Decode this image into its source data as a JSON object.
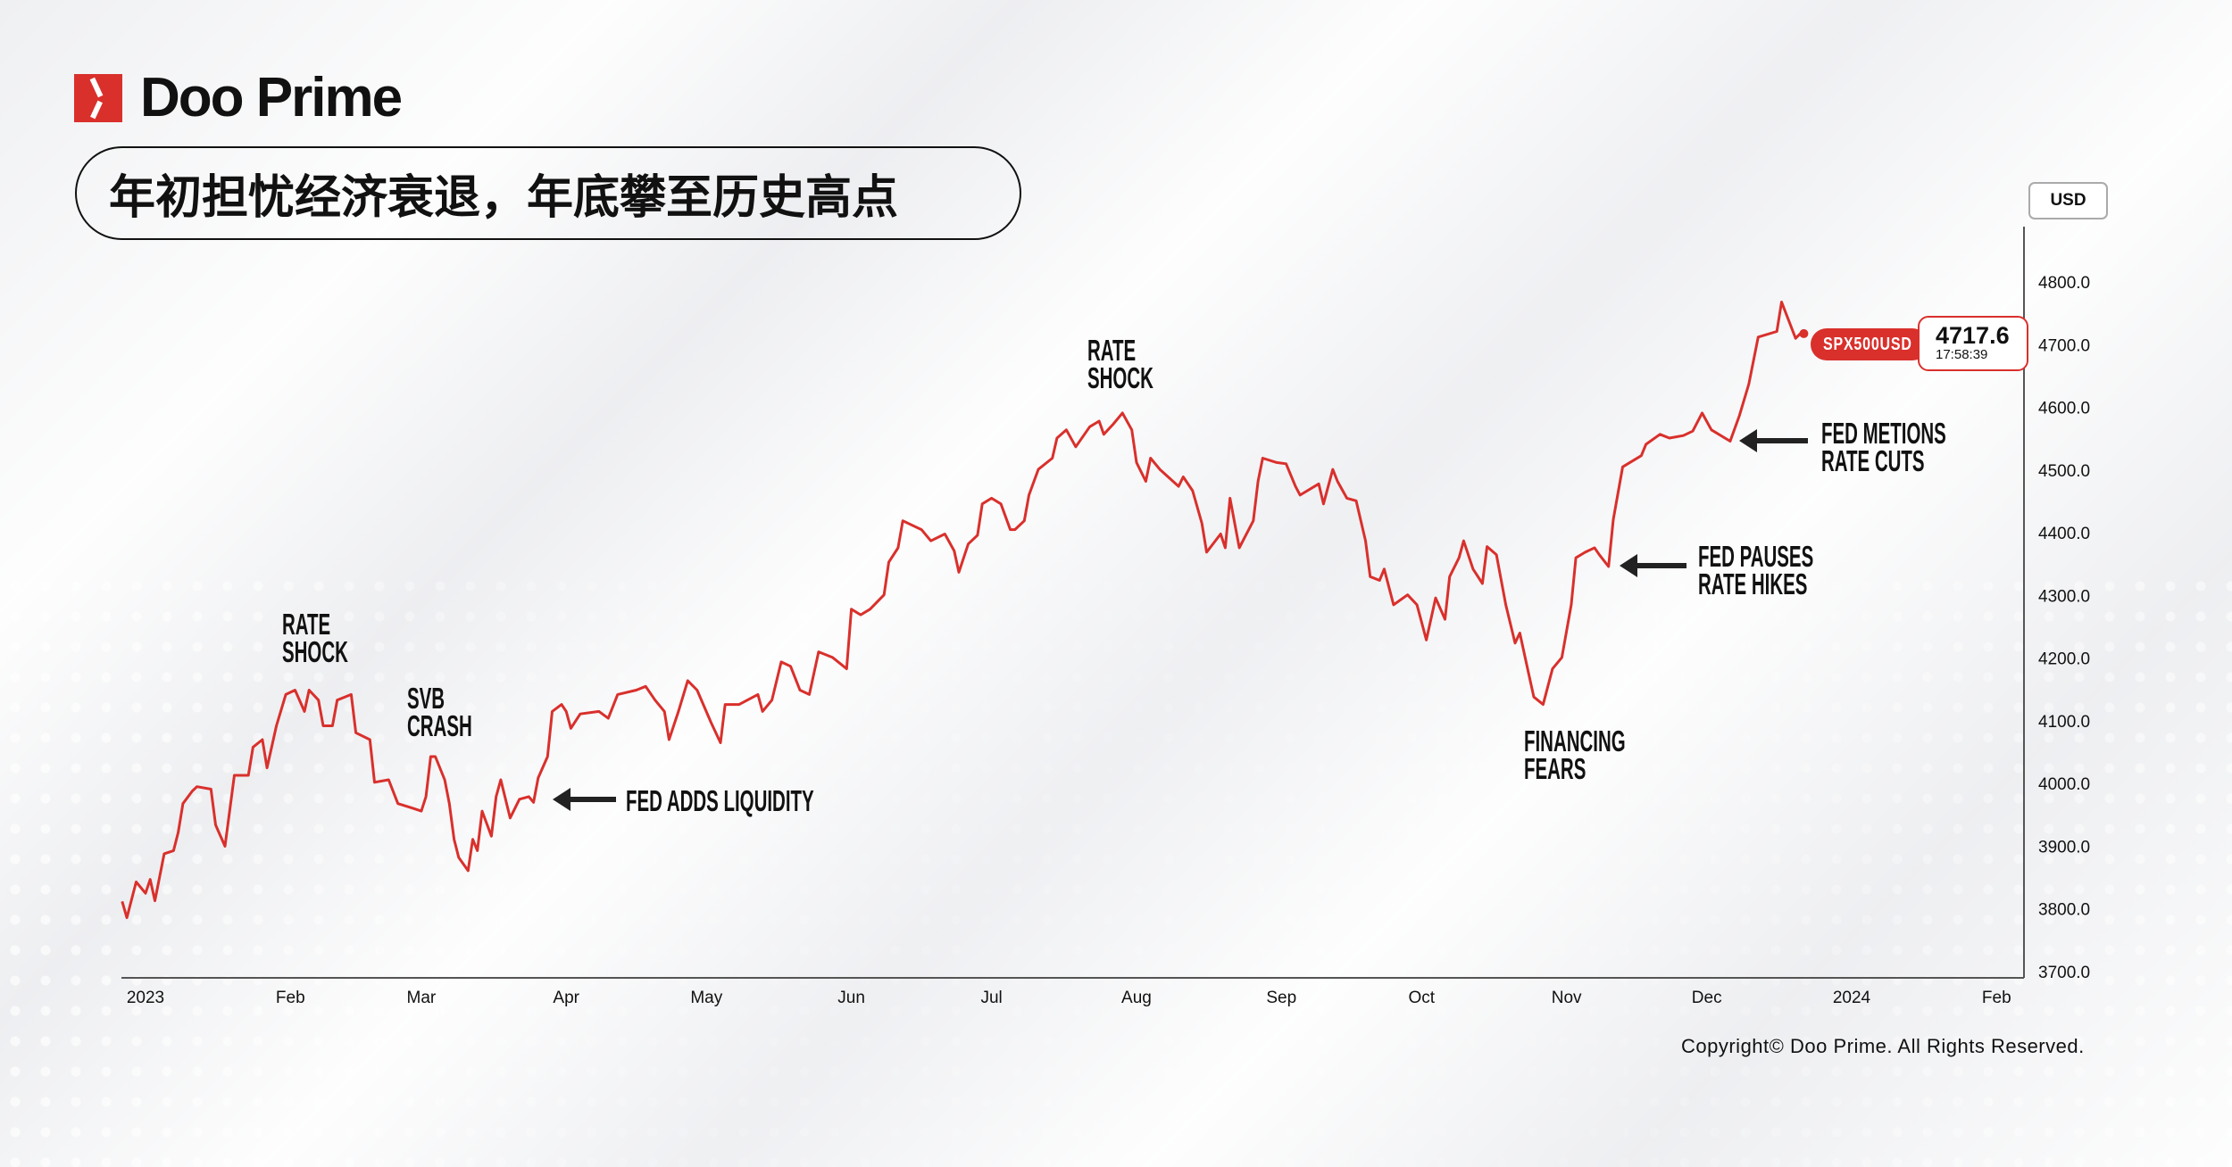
{
  "brand": {
    "name": "Doo Prime",
    "accent": "#d9302c"
  },
  "title": "年初担忧经济衰退，年底攀至历史高点",
  "currency_button": "USD",
  "price_tag": {
    "symbol": "SPX500USD",
    "price": "4717.6",
    "time": "17:58:39"
  },
  "annotations": [
    {
      "lines": [
        "RATE",
        "SHOCK"
      ],
      "date": "2023-02-02"
    },
    {
      "lines": [
        "SVB",
        "CRASH"
      ],
      "date": "2023-03-09"
    },
    {
      "lines": [
        "FED ADDS LIQUIDITY"
      ],
      "date": "2023-03-27",
      "arrow": true
    },
    {
      "lines": [
        "RATE",
        "SHOCK"
      ],
      "date": "2023-07-29"
    },
    {
      "lines": [
        "FINANCING",
        "FEARS"
      ],
      "date": "2023-10-27"
    },
    {
      "lines": [
        "FED PAUSES",
        "RATE HIKES"
      ],
      "date": "2023-11-10",
      "arrow": true
    },
    {
      "lines": [
        "FED METIONS",
        "RATE CUTS"
      ],
      "date": "2023-12-05",
      "arrow": true
    }
  ],
  "copyright": "Copyright© Doo Prime. All Rights Reserved.",
  "chart_data": {
    "type": "line",
    "series": [
      {
        "color": "#d9302c",
        "points": [
          [
            "2022-12-27",
            3812
          ],
          [
            "2022-12-28",
            3786
          ],
          [
            "2022-12-30",
            3843
          ],
          [
            "2023-01-01",
            3825
          ],
          [
            "2023-01-02",
            3847
          ],
          [
            "2023-01-03",
            3813
          ],
          [
            "2023-01-05",
            3888
          ],
          [
            "2023-01-07",
            3893
          ],
          [
            "2023-01-08",
            3922
          ],
          [
            "2023-01-09",
            3968
          ],
          [
            "2023-01-11",
            3988
          ],
          [
            "2023-01-12",
            3995
          ],
          [
            "2023-01-15",
            3991
          ],
          [
            "2023-01-16",
            3934
          ],
          [
            "2023-01-18",
            3900
          ],
          [
            "2023-01-20",
            4013
          ],
          [
            "2023-01-23",
            4013
          ],
          [
            "2023-01-24",
            4058
          ],
          [
            "2023-01-26",
            4070
          ],
          [
            "2023-01-27",
            4025
          ],
          [
            "2023-01-29",
            4092
          ],
          [
            "2023-01-31",
            4142
          ],
          [
            "2023-02-02",
            4149
          ],
          [
            "2023-02-04",
            4115
          ],
          [
            "2023-02-05",
            4149
          ],
          [
            "2023-02-07",
            4133
          ],
          [
            "2023-02-08",
            4092
          ],
          [
            "2023-02-10",
            4092
          ],
          [
            "2023-02-11",
            4133
          ],
          [
            "2023-02-14",
            4142
          ],
          [
            "2023-02-15",
            4081
          ],
          [
            "2023-02-18",
            4070
          ],
          [
            "2023-02-19",
            4002
          ],
          [
            "2023-02-22",
            4006
          ],
          [
            "2023-02-24",
            3968
          ],
          [
            "2023-02-27",
            3961
          ],
          [
            "2023-03-01",
            3956
          ],
          [
            "2023-03-02",
            3979
          ],
          [
            "2023-03-03",
            4043
          ],
          [
            "2023-03-04",
            4043
          ],
          [
            "2023-03-06",
            4006
          ],
          [
            "2023-03-07",
            3968
          ],
          [
            "2023-03-08",
            3911
          ],
          [
            "2023-03-09",
            3882
          ],
          [
            "2023-03-11",
            3861
          ],
          [
            "2023-03-12",
            3911
          ],
          [
            "2023-03-13",
            3893
          ],
          [
            "2023-03-14",
            3956
          ],
          [
            "2023-03-16",
            3916
          ],
          [
            "2023-03-17",
            3979
          ],
          [
            "2023-03-18",
            4006
          ],
          [
            "2023-03-20",
            3945
          ],
          [
            "2023-03-22",
            3975
          ],
          [
            "2023-03-24",
            3979
          ],
          [
            "2023-03-25",
            3970
          ],
          [
            "2023-03-26",
            4009
          ],
          [
            "2023-03-28",
            4043
          ],
          [
            "2023-03-29",
            4115
          ],
          [
            "2023-03-31",
            4126
          ],
          [
            "2023-04-01",
            4115
          ],
          [
            "2023-04-02",
            4088
          ],
          [
            "2023-04-04",
            4111
          ],
          [
            "2023-04-08",
            4115
          ],
          [
            "2023-04-10",
            4104
          ],
          [
            "2023-04-12",
            4142
          ],
          [
            "2023-04-16",
            4149
          ],
          [
            "2023-04-18",
            4155
          ],
          [
            "2023-04-20",
            4133
          ],
          [
            "2023-04-22",
            4115
          ],
          [
            "2023-04-23",
            4070
          ],
          [
            "2023-04-25",
            4115
          ],
          [
            "2023-04-27",
            4164
          ],
          [
            "2023-04-29",
            4149
          ],
          [
            "2023-05-02",
            4097
          ],
          [
            "2023-05-04",
            4065
          ],
          [
            "2023-05-05",
            4126
          ],
          [
            "2023-05-08",
            4126
          ],
          [
            "2023-05-12",
            4142
          ],
          [
            "2023-05-13",
            4115
          ],
          [
            "2023-05-15",
            4133
          ],
          [
            "2023-05-17",
            4194
          ],
          [
            "2023-05-19",
            4187
          ],
          [
            "2023-05-21",
            4149
          ],
          [
            "2023-05-23",
            4142
          ],
          [
            "2023-05-25",
            4210
          ],
          [
            "2023-05-28",
            4201
          ],
          [
            "2023-05-31",
            4183
          ],
          [
            "2023-06-01",
            4278
          ],
          [
            "2023-06-03",
            4269
          ],
          [
            "2023-06-05",
            4278
          ],
          [
            "2023-06-08",
            4301
          ],
          [
            "2023-06-09",
            4353
          ],
          [
            "2023-06-11",
            4376
          ],
          [
            "2023-06-12",
            4419
          ],
          [
            "2023-06-16",
            4405
          ],
          [
            "2023-06-18",
            4387
          ],
          [
            "2023-06-21",
            4398
          ],
          [
            "2023-06-23",
            4371
          ],
          [
            "2023-06-24",
            4337
          ],
          [
            "2023-06-26",
            4382
          ],
          [
            "2023-06-28",
            4396
          ],
          [
            "2023-06-29",
            4446
          ],
          [
            "2023-07-01",
            4455
          ],
          [
            "2023-07-03",
            4446
          ],
          [
            "2023-07-05",
            4405
          ],
          [
            "2023-07-06",
            4405
          ],
          [
            "2023-07-08",
            4419
          ],
          [
            "2023-07-09",
            4460
          ],
          [
            "2023-07-11",
            4501
          ],
          [
            "2023-07-14",
            4519
          ],
          [
            "2023-07-15",
            4551
          ],
          [
            "2023-07-17",
            4564
          ],
          [
            "2023-07-19",
            4537
          ],
          [
            "2023-07-22",
            4569
          ],
          [
            "2023-07-24",
            4578
          ],
          [
            "2023-07-25",
            4557
          ],
          [
            "2023-07-27",
            4573
          ],
          [
            "2023-07-29",
            4591
          ],
          [
            "2023-07-31",
            4564
          ],
          [
            "2023-08-01",
            4512
          ],
          [
            "2023-08-03",
            4482
          ],
          [
            "2023-08-04",
            4519
          ],
          [
            "2023-08-06",
            4501
          ],
          [
            "2023-08-10",
            4474
          ],
          [
            "2023-08-11",
            4489
          ],
          [
            "2023-08-13",
            4467
          ],
          [
            "2023-08-15",
            4415
          ],
          [
            "2023-08-16",
            4369
          ],
          [
            "2023-08-19",
            4398
          ],
          [
            "2023-08-20",
            4376
          ],
          [
            "2023-08-21",
            4455
          ],
          [
            "2023-08-23",
            4376
          ],
          [
            "2023-08-26",
            4419
          ],
          [
            "2023-08-27",
            4482
          ],
          [
            "2023-08-28",
            4519
          ],
          [
            "2023-08-31",
            4512
          ],
          [
            "2023-09-02",
            4510
          ],
          [
            "2023-09-04",
            4474
          ],
          [
            "2023-09-05",
            4460
          ],
          [
            "2023-09-09",
            4478
          ],
          [
            "2023-09-10",
            4446
          ],
          [
            "2023-09-12",
            4501
          ],
          [
            "2023-09-13",
            4482
          ],
          [
            "2023-09-15",
            4455
          ],
          [
            "2023-09-17",
            4451
          ],
          [
            "2023-09-19",
            4387
          ],
          [
            "2023-09-20",
            4330
          ],
          [
            "2023-09-22",
            4324
          ],
          [
            "2023-09-23",
            4342
          ],
          [
            "2023-09-25",
            4285
          ],
          [
            "2023-09-28",
            4301
          ],
          [
            "2023-09-30",
            4285
          ],
          [
            "2023-10-02",
            4229
          ],
          [
            "2023-10-04",
            4296
          ],
          [
            "2023-10-06",
            4262
          ],
          [
            "2023-10-07",
            4330
          ],
          [
            "2023-10-09",
            4360
          ],
          [
            "2023-10-10",
            4387
          ],
          [
            "2023-10-12",
            4342
          ],
          [
            "2023-10-14",
            4319
          ],
          [
            "2023-10-15",
            4378
          ],
          [
            "2023-10-17",
            4365
          ],
          [
            "2023-10-19",
            4285
          ],
          [
            "2023-10-21",
            4224
          ],
          [
            "2023-10-22",
            4240
          ],
          [
            "2023-10-24",
            4172
          ],
          [
            "2023-10-25",
            4138
          ],
          [
            "2023-10-27",
            4126
          ],
          [
            "2023-10-29",
            4183
          ],
          [
            "2023-10-31",
            4201
          ],
          [
            "2023-11-02",
            4285
          ],
          [
            "2023-11-03",
            4360
          ],
          [
            "2023-11-05",
            4369
          ],
          [
            "2023-11-07",
            4376
          ],
          [
            "2023-11-08",
            4365
          ],
          [
            "2023-11-10",
            4346
          ],
          [
            "2023-11-11",
            4421
          ],
          [
            "2023-11-13",
            4505
          ],
          [
            "2023-11-17",
            4523
          ],
          [
            "2023-11-18",
            4541
          ],
          [
            "2023-11-21",
            4557
          ],
          [
            "2023-11-23",
            4551
          ],
          [
            "2023-11-26",
            4555
          ],
          [
            "2023-11-28",
            4562
          ],
          [
            "2023-11-30",
            4591
          ],
          [
            "2023-12-02",
            4564
          ],
          [
            "2023-12-06",
            4546
          ],
          [
            "2023-12-08",
            4587
          ],
          [
            "2023-12-10",
            4637
          ],
          [
            "2023-12-12",
            4712
          ],
          [
            "2023-12-16",
            4721
          ],
          [
            "2023-12-17",
            4768
          ],
          [
            "2023-12-20",
            4710
          ],
          [
            "2023-12-21",
            4717.6
          ]
        ]
      }
    ],
    "x_ticks": [
      [
        "2023-01-01",
        "2023"
      ],
      [
        "2023-02-01",
        "Feb"
      ],
      [
        "2023-03-01",
        "Mar"
      ],
      [
        "2023-04-01",
        "Apr"
      ],
      [
        "2023-05-01",
        "May"
      ],
      [
        "2023-06-01",
        "Jun"
      ],
      [
        "2023-07-01",
        "Jul"
      ],
      [
        "2023-08-01",
        "Aug"
      ],
      [
        "2023-09-01",
        "Sep"
      ],
      [
        "2023-10-01",
        "Oct"
      ],
      [
        "2023-11-01",
        "Nov"
      ],
      [
        "2023-12-01",
        "Dec"
      ],
      [
        "2024-01-01",
        "2024"
      ],
      [
        "2024-02-01",
        "Feb"
      ]
    ],
    "y_ticks": [
      "3700.0",
      "3800.0",
      "3900.0",
      "4000.0",
      "4100.0",
      "4200.0",
      "4300.0",
      "4400.0",
      "4500.0",
      "4600.0",
      "4700.0",
      "4800.0"
    ],
    "ylim": [
      3700,
      4800
    ],
    "y_axis_position": "right",
    "grid": false
  }
}
